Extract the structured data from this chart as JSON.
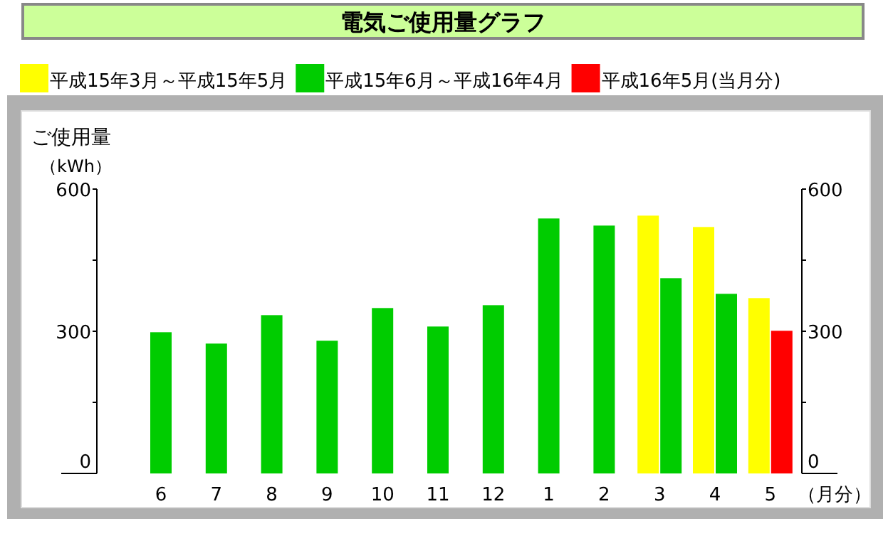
{
  "chart_data": {
    "type": "bar",
    "title": "電気ご使用量グラフ",
    "ylabel": "ご使用量",
    "annotations": [
      "（kWh）"
    ],
    "xlabel": "（月分）",
    "categories": [
      "6",
      "7",
      "8",
      "9",
      "10",
      "11",
      "12",
      "1",
      "2",
      "3",
      "4",
      "5"
    ],
    "series": [
      {
        "name": "平成15年3月～平成15年5月",
        "color": "#ffff00",
        "values": [
          null,
          null,
          null,
          null,
          null,
          null,
          null,
          null,
          null,
          544,
          520,
          370
        ]
      },
      {
        "name": "平成15年6月～平成16年4月",
        "color": "#00cc00",
        "values": [
          298,
          274,
          334,
          280,
          349,
          310,
          355,
          538,
          523,
          412,
          379,
          null
        ]
      },
      {
        "name": "平成16年5月(当月分)",
        "color": "#ff0000",
        "values": [
          null,
          null,
          null,
          null,
          null,
          null,
          null,
          null,
          null,
          null,
          null,
          301
        ]
      }
    ],
    "ylim": [
      0,
      600
    ],
    "yticks": [
      0,
      {
        "value": 150,
        "label": null
      },
      300,
      {
        "value": 450,
        "label": null
      },
      600
    ],
    "y2lim": [
      0,
      600
    ],
    "y2ticks": [
      0,
      {
        "value": 150,
        "label": null
      },
      300,
      {
        "value": 450,
        "label": null
      },
      600
    ],
    "legend": "top"
  }
}
